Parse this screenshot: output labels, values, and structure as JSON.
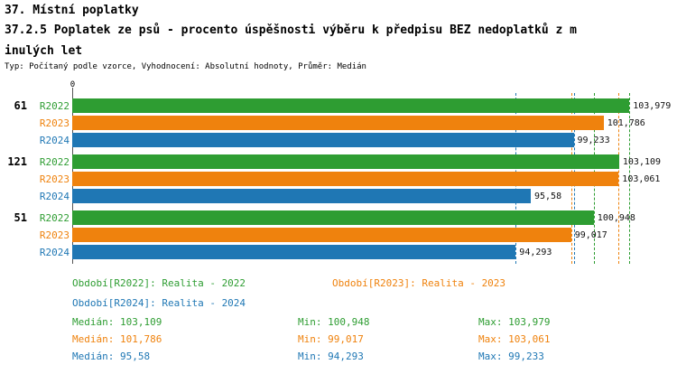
{
  "header": {
    "title": "37. Místní poplatky",
    "subtitle_line1": "37.2.5 Poplatek ze psů - procento úspěšnosti výběru k předpisu BEZ nedoplatků z m",
    "subtitle_line2": "inulých let",
    "meta": "Typ: Počítaný podle vzorce, Vyhodnocení: Absolutní hodnoty, Průměr: Medián"
  },
  "chart_data": {
    "type": "bar",
    "orientation": "horizontal",
    "title": "37.2.5 Poplatek ze psů - procento úspěšnosti výběru k předpisu BEZ nedoplatků z minulých let",
    "axis": {
      "origin_label": "0",
      "value_range_estimate": [
        56.5,
        107.5
      ]
    },
    "series": [
      {
        "name": "R2022",
        "color": "#2e9d32",
        "legend": "Realita - 2022"
      },
      {
        "name": "R2023",
        "color": "#ef820d",
        "legend": "Realita - 2023"
      },
      {
        "name": "R2024",
        "color": "#1f77b4",
        "legend": "Realita - 2024"
      }
    ],
    "groups": [
      {
        "label": "61",
        "values": [
          {
            "series": "R2022",
            "value": 103.979,
            "display": "103,979"
          },
          {
            "series": "R2023",
            "value": 101.786,
            "display": "101,786"
          },
          {
            "series": "R2024",
            "value": 99.233,
            "display": "99,233"
          }
        ]
      },
      {
        "label": "121",
        "values": [
          {
            "series": "R2022",
            "value": 103.109,
            "display": "103,109"
          },
          {
            "series": "R2023",
            "value": 103.061,
            "display": "103,061"
          },
          {
            "series": "R2024",
            "value": 95.58,
            "display": "95,58"
          }
        ]
      },
      {
        "label": "51",
        "values": [
          {
            "series": "R2022",
            "value": 100.948,
            "display": "100,948"
          },
          {
            "series": "R2023",
            "value": 99.017,
            "display": "99,017"
          },
          {
            "series": "R2024",
            "value": 94.293,
            "display": "94,293"
          }
        ]
      }
    ],
    "guides": [
      {
        "series": "R2022",
        "min": 100.948,
        "max": 103.979
      },
      {
        "series": "R2023",
        "min": 99.017,
        "max": 103.061
      },
      {
        "series": "R2024",
        "min": 94.293,
        "max": 99.233
      }
    ]
  },
  "legend": [
    {
      "series": "R2022",
      "text": "Období[R2022]: Realita - 2022"
    },
    {
      "series": "R2023",
      "text": "Období[R2023]: Realita - 2023"
    },
    {
      "series": "R2024",
      "text": "Období[R2024]: Realita - 2024"
    }
  ],
  "stats": [
    {
      "series": "R2022",
      "median": "Medián: 103,109",
      "min": "Min: 100,948",
      "max": "Max: 103,979"
    },
    {
      "series": "R2023",
      "median": "Medián: 101,786",
      "min": "Min: 99,017",
      "max": "Max: 103,061"
    },
    {
      "series": "R2024",
      "median": "Medián: 95,58",
      "min": "Min: 94,293",
      "max": "Max: 99,233"
    }
  ]
}
